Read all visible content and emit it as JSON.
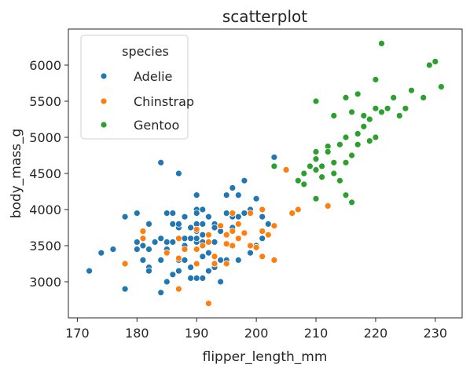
{
  "chart_data": {
    "type": "scatter",
    "title": "scatterplot",
    "xlabel": "flipper_length_mm",
    "ylabel": "body_mass_g",
    "xlim": [
      168.5,
      234.5
    ],
    "ylim": [
      2500,
      6500
    ],
    "xticks": [
      170,
      180,
      190,
      200,
      210,
      220,
      230
    ],
    "yticks": [
      3000,
      3500,
      4000,
      4500,
      5000,
      5500,
      6000
    ],
    "grid": false,
    "legend": {
      "title": "species",
      "placement": "top-left"
    },
    "series": [
      {
        "name": "Adelie",
        "color": "#1f77b4",
        "points": [
          [
            172,
            3150
          ],
          [
            174,
            3400
          ],
          [
            176,
            3450
          ],
          [
            178,
            2900
          ],
          [
            178,
            3900
          ],
          [
            180,
            3950
          ],
          [
            180,
            3550
          ],
          [
            180,
            3450
          ],
          [
            181,
            3700
          ],
          [
            181,
            3300
          ],
          [
            181,
            3500
          ],
          [
            182,
            3200
          ],
          [
            182,
            3800
          ],
          [
            182,
            3150
          ],
          [
            182,
            3450
          ],
          [
            183,
            3550
          ],
          [
            184,
            2850
          ],
          [
            184,
            4650
          ],
          [
            184,
            3600
          ],
          [
            184,
            3300
          ],
          [
            185,
            3550
          ],
          [
            185,
            3450
          ],
          [
            185,
            3000
          ],
          [
            185,
            3950
          ],
          [
            186,
            3800
          ],
          [
            186,
            3550
          ],
          [
            186,
            3100
          ],
          [
            186,
            3950
          ],
          [
            187,
            3750
          ],
          [
            187,
            3150
          ],
          [
            187,
            4500
          ],
          [
            187,
            3300
          ],
          [
            187,
            3800
          ],
          [
            188,
            3600
          ],
          [
            188,
            3300
          ],
          [
            188,
            3900
          ],
          [
            188,
            3500
          ],
          [
            189,
            3200
          ],
          [
            189,
            3600
          ],
          [
            189,
            3750
          ],
          [
            189,
            3050
          ],
          [
            190,
            3450
          ],
          [
            190,
            3800
          ],
          [
            190,
            4000
          ],
          [
            190,
            3050
          ],
          [
            190,
            3550
          ],
          [
            190,
            3950
          ],
          [
            190,
            4200
          ],
          [
            190,
            3700
          ],
          [
            190,
            3600
          ],
          [
            191,
            3650
          ],
          [
            191,
            3800
          ],
          [
            191,
            3050
          ],
          [
            191,
            3350
          ],
          [
            191,
            4000
          ],
          [
            191,
            3550
          ],
          [
            192,
            3400
          ],
          [
            192,
            3900
          ],
          [
            192,
            3150
          ],
          [
            193,
            3800
          ],
          [
            193,
            3200
          ],
          [
            193,
            3750
          ],
          [
            193,
            3550
          ],
          [
            194,
            3000
          ],
          [
            194,
            3700
          ],
          [
            194,
            3300
          ],
          [
            195,
            3650
          ],
          [
            195,
            3950
          ],
          [
            195,
            4200
          ],
          [
            195,
            3300
          ],
          [
            196,
            4300
          ],
          [
            196,
            3750
          ],
          [
            196,
            3900
          ],
          [
            197,
            3300
          ],
          [
            197,
            4200
          ],
          [
            197,
            3900
          ],
          [
            198,
            3950
          ],
          [
            198,
            4400
          ],
          [
            199,
            4000
          ],
          [
            199,
            3400
          ],
          [
            200,
            3500
          ],
          [
            200,
            4150
          ],
          [
            201,
            3600
          ],
          [
            201,
            3900
          ],
          [
            202,
            3800
          ],
          [
            203,
            4725
          ]
        ]
      },
      {
        "name": "Chinstrap",
        "color": "#ff7f0e",
        "points": [
          [
            178,
            3250
          ],
          [
            181,
            3700
          ],
          [
            181,
            3600
          ],
          [
            185,
            3400
          ],
          [
            187,
            2900
          ],
          [
            187,
            3325
          ],
          [
            187,
            3600
          ],
          [
            188,
            3450
          ],
          [
            190,
            3450
          ],
          [
            190,
            3725
          ],
          [
            190,
            3250
          ],
          [
            191,
            3500
          ],
          [
            192,
            2700
          ],
          [
            192,
            3550
          ],
          [
            192,
            3650
          ],
          [
            193,
            3350
          ],
          [
            193,
            3250
          ],
          [
            194,
            3775
          ],
          [
            195,
            3650
          ],
          [
            195,
            3250
          ],
          [
            195,
            3525
          ],
          [
            196,
            3500
          ],
          [
            196,
            3700
          ],
          [
            196,
            3950
          ],
          [
            197,
            3600
          ],
          [
            197,
            3800
          ],
          [
            198,
            3675
          ],
          [
            199,
            3950
          ],
          [
            199,
            3500
          ],
          [
            200,
            3475
          ],
          [
            201,
            3700
          ],
          [
            201,
            3350
          ],
          [
            201,
            4000
          ],
          [
            202,
            3650
          ],
          [
            203,
            3300
          ],
          [
            203,
            3775
          ],
          [
            205,
            4550
          ],
          [
            206,
            3950
          ],
          [
            207,
            4000
          ],
          [
            212,
            4050
          ]
        ]
      },
      {
        "name": "Gentoo",
        "color": "#2ca02c",
        "points": [
          [
            203,
            4600
          ],
          [
            207,
            4400
          ],
          [
            208,
            4500
          ],
          [
            208,
            4350
          ],
          [
            209,
            4600
          ],
          [
            210,
            4800
          ],
          [
            210,
            4150
          ],
          [
            210,
            4550
          ],
          [
            210,
            5500
          ],
          [
            210,
            4700
          ],
          [
            211,
            4450
          ],
          [
            211,
            4600
          ],
          [
            212,
            4875
          ],
          [
            212,
            4800
          ],
          [
            213,
            4650
          ],
          [
            213,
            4500
          ],
          [
            213,
            5300
          ],
          [
            214,
            4400
          ],
          [
            214,
            4900
          ],
          [
            215,
            4200
          ],
          [
            215,
            4650
          ],
          [
            215,
            5000
          ],
          [
            215,
            5550
          ],
          [
            216,
            4100
          ],
          [
            216,
            4750
          ],
          [
            216,
            5350
          ],
          [
            217,
            4900
          ],
          [
            217,
            5050
          ],
          [
            217,
            5600
          ],
          [
            218,
            5150
          ],
          [
            218,
            5300
          ],
          [
            219,
            5250
          ],
          [
            219,
            4950
          ],
          [
            220,
            5400
          ],
          [
            220,
            5800
          ],
          [
            220,
            5000
          ],
          [
            221,
            6300
          ],
          [
            221,
            5350
          ],
          [
            222,
            5400
          ],
          [
            223,
            5550
          ],
          [
            224,
            5300
          ],
          [
            225,
            5400
          ],
          [
            226,
            5650
          ],
          [
            228,
            5550
          ],
          [
            229,
            6000
          ],
          [
            230,
            6050
          ],
          [
            231,
            5700
          ]
        ]
      }
    ]
  }
}
